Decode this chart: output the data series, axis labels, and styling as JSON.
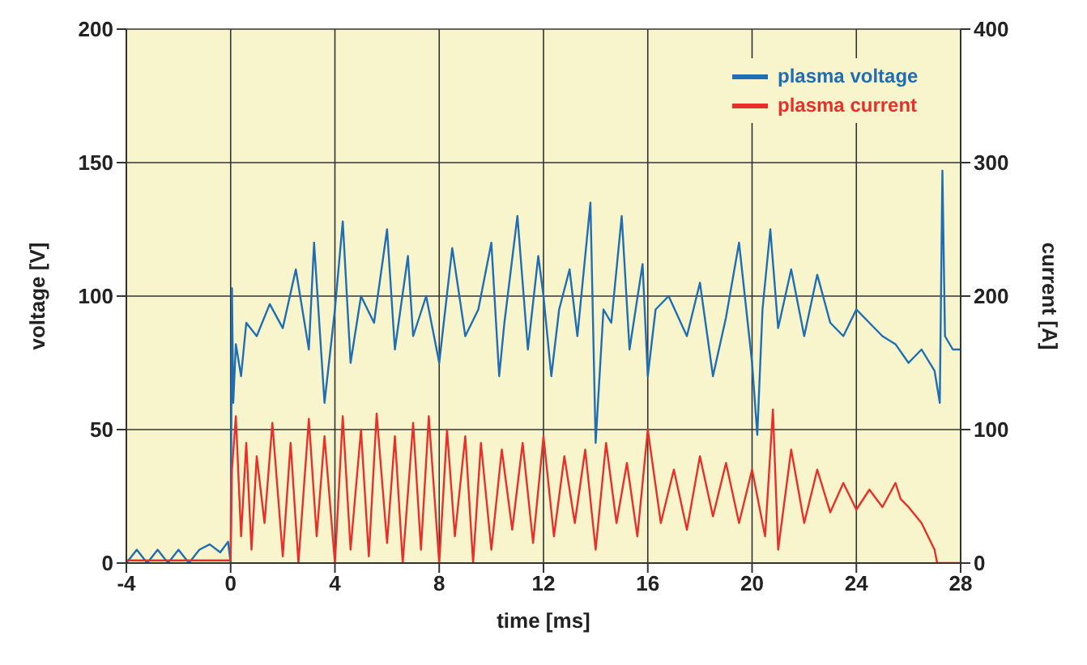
{
  "chart_data": {
    "type": "line",
    "xlabel": "time [ms]",
    "ylabel": "voltage [V]",
    "y2label": "current [A]",
    "xlim": [
      -4,
      28
    ],
    "xticks": [
      -4,
      0,
      4,
      8,
      12,
      16,
      20,
      24,
      28
    ],
    "ylim": [
      0,
      200
    ],
    "yticks": [
      0,
      50,
      100,
      150,
      200
    ],
    "y2lim": [
      0,
      400
    ],
    "y2ticks": [
      0,
      100,
      200,
      300,
      400
    ],
    "grid": true,
    "legend": "top right",
    "marker": "none",
    "line_style": "solid",
    "series": [
      {
        "name": "plasma voltage",
        "color": "#1f6eb4",
        "x": [
          -4,
          -3.6,
          -3.2,
          -2.8,
          -2.4,
          -2,
          -1.6,
          -1.2,
          -0.8,
          -0.4,
          -0.1,
          0,
          0.05,
          0.1,
          0.2,
          0.4,
          0.6,
          1,
          1.5,
          2,
          2.5,
          3,
          3.2,
          3.6,
          4,
          4.3,
          4.6,
          5,
          5.5,
          6,
          6.3,
          6.8,
          7,
          7.5,
          8,
          8.5,
          9,
          9.5,
          10,
          10.3,
          10.5,
          11,
          11.4,
          11.8,
          12,
          12.3,
          12.6,
          13,
          13.3,
          13.8,
          14,
          14.3,
          14.6,
          15,
          15.3,
          15.8,
          16,
          16.3,
          16.8,
          17.5,
          18,
          18.5,
          19,
          19.5,
          20,
          20.2,
          20.4,
          20.7,
          21,
          21.5,
          22,
          22.5,
          23,
          23.5,
          24,
          24.5,
          25,
          25.5,
          26,
          26.5,
          27,
          27.2,
          27.3,
          27.4,
          27.7,
          28
        ],
        "values": [
          0,
          5,
          0,
          5,
          0,
          5,
          0,
          5,
          7,
          4,
          8,
          0,
          103,
          60,
          82,
          70,
          90,
          85,
          97,
          88,
          110,
          80,
          120,
          60,
          95,
          128,
          75,
          100,
          90,
          125,
          80,
          115,
          85,
          100,
          75,
          118,
          85,
          95,
          120,
          70,
          90,
          130,
          80,
          115,
          100,
          70,
          95,
          110,
          85,
          135,
          45,
          95,
          90,
          130,
          80,
          112,
          70,
          95,
          100,
          85,
          105,
          70,
          92,
          120,
          75,
          48,
          95,
          125,
          88,
          110,
          85,
          108,
          90,
          85,
          95,
          90,
          85,
          82,
          75,
          80,
          72,
          60,
          147,
          85,
          80,
          80
        ]
      },
      {
        "name": "plasma current",
        "color": "#e8302a",
        "axis": "y2",
        "x": [
          -4,
          -2,
          0,
          0.05,
          0.2,
          0.4,
          0.6,
          0.8,
          1,
          1.3,
          1.6,
          2,
          2.3,
          2.6,
          3,
          3.3,
          3.6,
          4,
          4.3,
          4.6,
          5,
          5.3,
          5.6,
          6,
          6.3,
          6.6,
          7,
          7.3,
          7.6,
          8,
          8.3,
          8.6,
          9,
          9.3,
          9.6,
          10,
          10.4,
          10.8,
          11.2,
          11.6,
          12,
          12.4,
          12.8,
          13.2,
          13.6,
          14,
          14.4,
          14.8,
          15.2,
          15.6,
          16,
          16.5,
          17,
          17.5,
          18,
          18.5,
          19,
          19.5,
          20,
          20.5,
          20.8,
          21,
          21.5,
          22,
          22.5,
          23,
          23.5,
          24,
          24.5,
          25,
          25.5,
          25.7,
          26,
          26.5,
          27,
          27.1,
          28
        ],
        "values": [
          2,
          2,
          2,
          70,
          110,
          20,
          90,
          10,
          80,
          30,
          105,
          5,
          90,
          0,
          108,
          20,
          95,
          0,
          110,
          10,
          100,
          5,
          112,
          15,
          95,
          0,
          105,
          10,
          110,
          0,
          100,
          20,
          95,
          0,
          90,
          10,
          85,
          25,
          90,
          15,
          95,
          20,
          80,
          30,
          85,
          10,
          90,
          30,
          75,
          20,
          100,
          30,
          70,
          25,
          80,
          35,
          75,
          30,
          70,
          20,
          115,
          10,
          85,
          30,
          70,
          38,
          60,
          40,
          55,
          42,
          60,
          48,
          42,
          30,
          10,
          0,
          0
        ]
      }
    ]
  }
}
